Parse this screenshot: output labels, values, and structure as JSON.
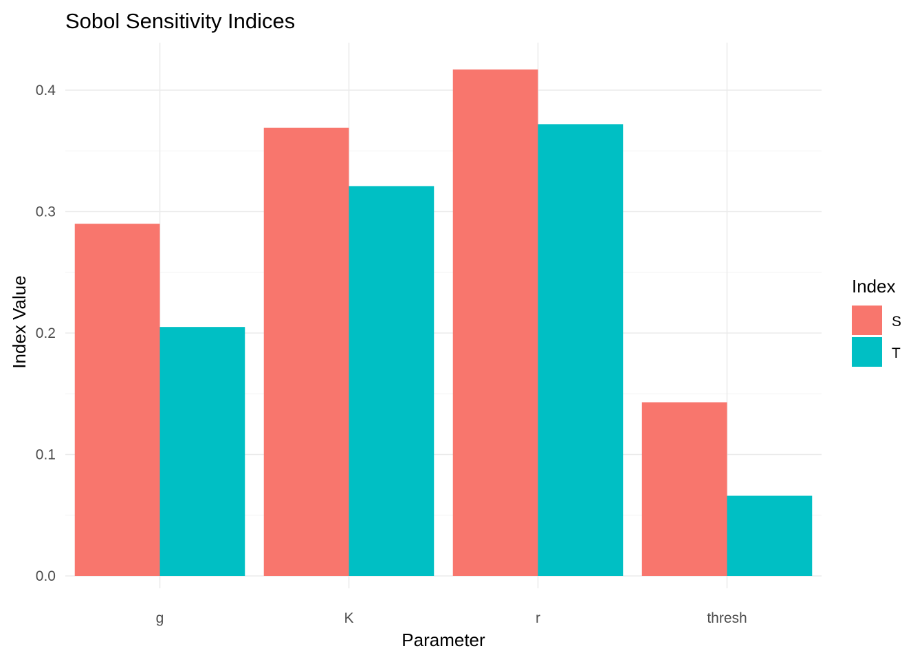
{
  "chart_data": {
    "type": "bar",
    "title": "Sobol Sensitivity Indices",
    "xlabel": "Parameter",
    "ylabel": "Index Value",
    "categories": [
      "g",
      "K",
      "r",
      "thresh"
    ],
    "series": [
      {
        "name": "S",
        "color": "#F8766D",
        "values": [
          0.29,
          0.369,
          0.417,
          0.143
        ]
      },
      {
        "name": "T",
        "color": "#00BFC4",
        "values": [
          0.205,
          0.321,
          0.372,
          0.066
        ]
      }
    ],
    "ylim": [
      0,
      0.44
    ],
    "yticks": [
      0.0,
      0.1,
      0.2,
      0.3,
      0.4
    ],
    "ytick_labels": [
      "0.0",
      "0.1",
      "0.2",
      "0.3",
      "0.4"
    ],
    "grid": true,
    "legend": {
      "title": "Index",
      "position": "right"
    }
  }
}
